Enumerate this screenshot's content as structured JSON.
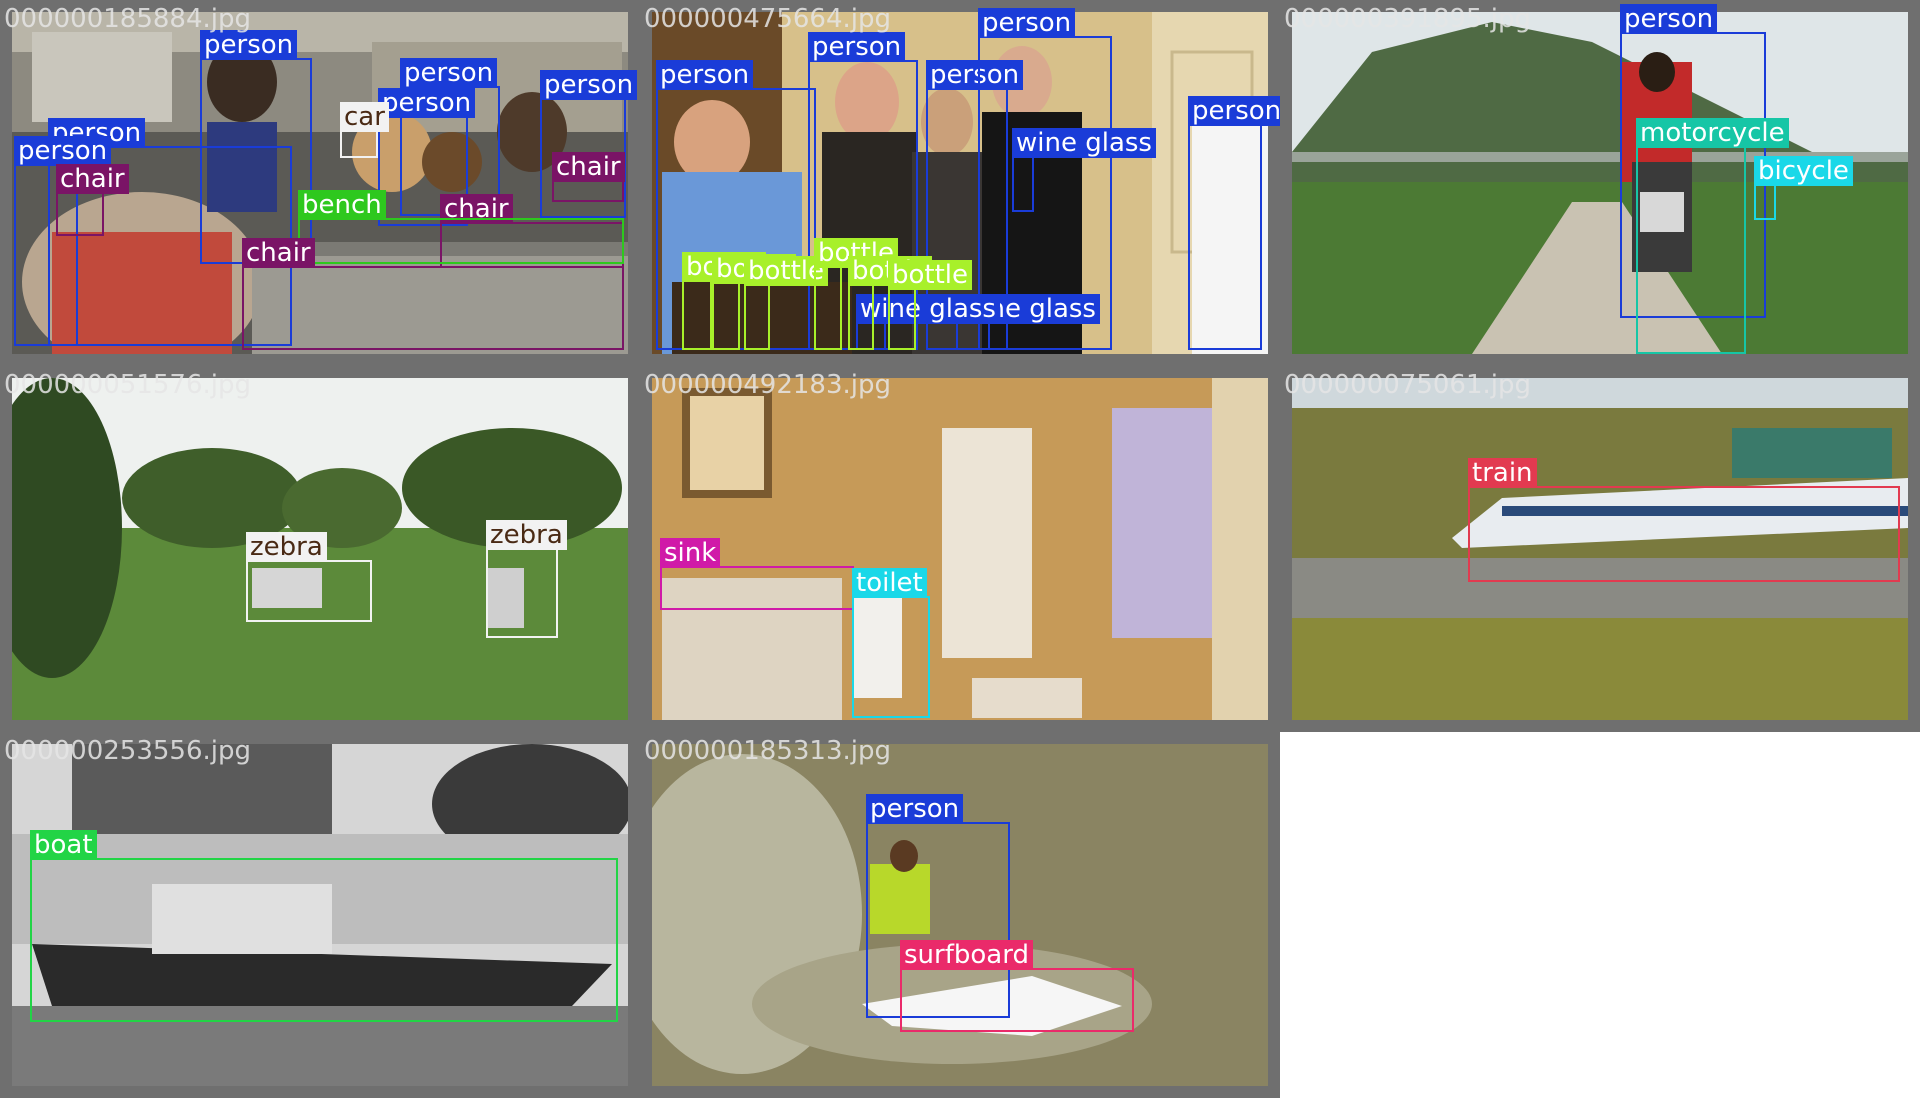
{
  "colors": {
    "person": "#1a3cd8",
    "chair": "#7a1466",
    "bench": "#2ec81e",
    "car": "#f2f2f2",
    "wine_glass": "#1a3cd8",
    "bottle": "#a8f02a",
    "motorcycle": "#16c6a6",
    "bicycle": "#1ad8e8",
    "zebra": "#f2f2f2",
    "sink": "#d01aa8",
    "toilet": "#1ad8e8",
    "train": "#e23a50",
    "boat": "#22d446",
    "surfboard": "#ea2a6a"
  },
  "tiles": [
    {
      "filename": "000000185884.jpg",
      "labels": {
        "person": "person",
        "chair": "chair",
        "bench": "bench",
        "car": "car"
      }
    },
    {
      "filename": "000000475664.jpg",
      "labels": {
        "person": "person",
        "wine_glass": "wine glass",
        "bottle": "bottle"
      }
    },
    {
      "filename": "000000391895.jpg",
      "labels": {
        "person": "person",
        "motorcycle": "motorcycle",
        "bicycle": "bicycle"
      }
    },
    {
      "filename": "000000051576.jpg",
      "labels": {
        "zebra": "zebra"
      }
    },
    {
      "filename": "000000492183.jpg",
      "labels": {
        "sink": "sink",
        "toilet": "toilet"
      }
    },
    {
      "filename": "000000075061.jpg",
      "labels": {
        "train": "train"
      }
    },
    {
      "filename": "000000253556.jpg",
      "labels": {
        "boat": "boat"
      }
    },
    {
      "filename": "000000185313.jpg",
      "labels": {
        "person": "person",
        "surfboard": "surfboard"
      }
    }
  ]
}
